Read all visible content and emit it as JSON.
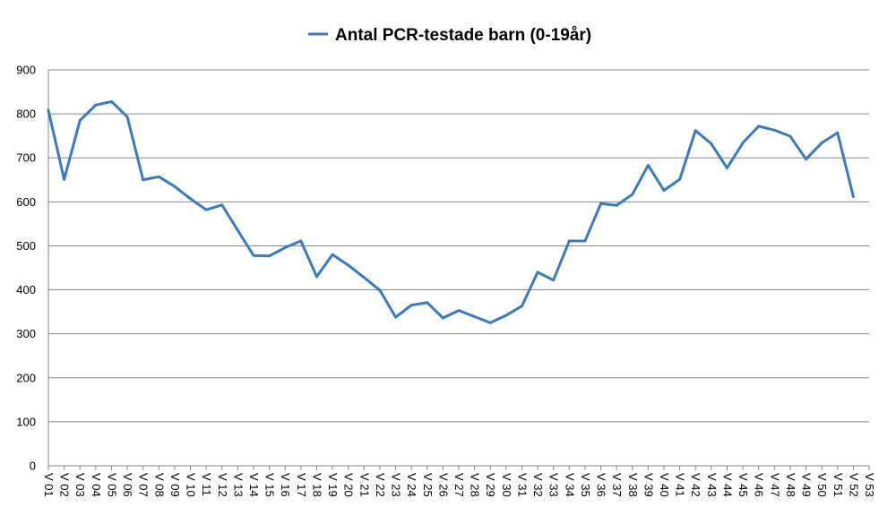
{
  "chart_data": {
    "type": "line",
    "legend_position": "top-center",
    "grid": true,
    "ylim": [
      0,
      900
    ],
    "y_ticks": [
      "0",
      "100",
      "200",
      "300",
      "400",
      "500",
      "600",
      "700",
      "800",
      "900"
    ],
    "categories": [
      "V 01",
      "V 02",
      "V 03",
      "V 04",
      "V 05",
      "V 06",
      "V 07",
      "V 08",
      "V 09",
      "V 10",
      "V 11",
      "V 12",
      "V 13",
      "V 14",
      "V 15",
      "V 16",
      "V 17",
      "V 18",
      "V 19",
      "V 20",
      "V 21",
      "V 22",
      "V 23",
      "V 24",
      "V 25",
      "V 26",
      "V 27",
      "V 28",
      "V 29",
      "V 30",
      "V 31",
      "V 32",
      "V 33",
      "V 34",
      "V 35",
      "V 36",
      "V 37",
      "V 38",
      "V 39",
      "V 40",
      "V 41",
      "V 42",
      "V 43",
      "V 44",
      "V 45",
      "V 46",
      "V 47",
      "V 48",
      "V 49",
      "V 50",
      "V 51",
      "V 52",
      "V 53"
    ],
    "series": [
      {
        "name": "Antal PCR-testade barn (0-19år)",
        "color": "#3A7BBF",
        "values": [
          808,
          651,
          785,
          820,
          828,
          793,
          650,
          657,
          635,
          607,
          582,
          593,
          535,
          478,
          477,
          496,
          511,
          430,
          480,
          456,
          428,
          399,
          338,
          365,
          371,
          336,
          353,
          339,
          325,
          342,
          363,
          440,
          422,
          511,
          511,
          596,
          592,
          617,
          683,
          626,
          651,
          762,
          732,
          677,
          734,
          772,
          763,
          749,
          697,
          734,
          757,
          612,
          null
        ]
      }
    ]
  }
}
